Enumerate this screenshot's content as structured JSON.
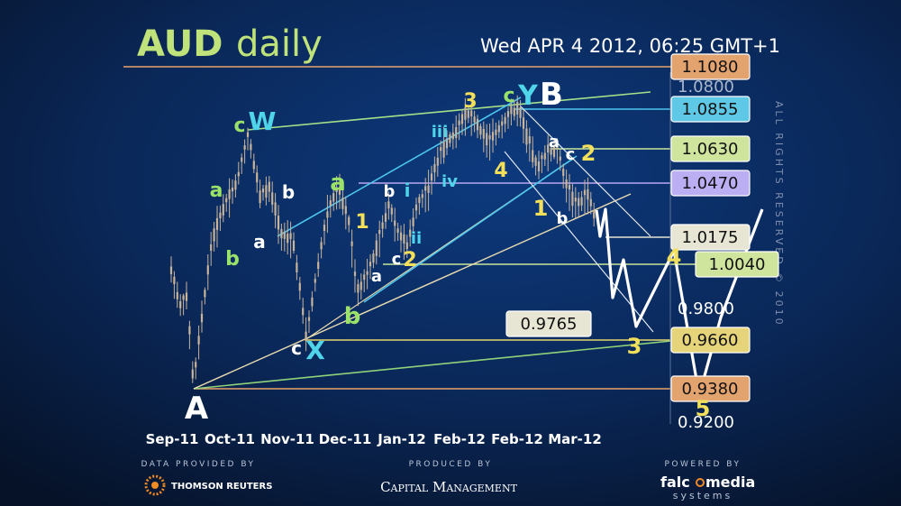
{
  "header": {
    "title_main": "AUD",
    "title_sub": "daily",
    "timestamp": "Wed APR 4 2012, 06:25 GMT+1"
  },
  "watermark": "ALL RIGHTS RESERVED © 2010",
  "footer": {
    "data_caption": "DATA PROVIDED BY",
    "data_provider": "THOMSON REUTERS",
    "produced_caption": "PRODUCED BY",
    "producer": "Capital Management",
    "powered_caption": "POWERED BY",
    "powered_name_1": "falc",
    "powered_name_2": "media",
    "powered_sub": "systems"
  },
  "colors": {
    "background_top": "#0d2f6b",
    "background_bottom": "#071327",
    "candle": "#c8b49a",
    "label_green": "#9be26a",
    "label_yellow": "#f3e05a",
    "label_cyan": "#4fd4ea",
    "label_white": "#ffffff",
    "line_green": "#a6e08a",
    "line_cyan": "#4cc6ee",
    "line_tan": "#e9dcb0",
    "line_violet": "#b9a7f2",
    "line_orange": "#e9a36a",
    "line_yellow": "#e6d66d"
  },
  "chart_data": {
    "type": "candlestick",
    "title": "AUD daily",
    "x_ticks": [
      "Sep-11",
      "Oct-11",
      "Nov-11",
      "Dec-11",
      "Jan-12",
      "Feb-12",
      "Feb-12",
      "Mar-12"
    ],
    "y_ticks": [
      1.08,
      0.98,
      0.92
    ],
    "y_tick_labels": [
      "1.0800",
      "0.9800",
      "0.9200"
    ],
    "ylim": [
      0.9,
      1.1
    ],
    "levels": [
      {
        "label": "1.1080",
        "value": 1.108,
        "color": "#e9a36a"
      },
      {
        "label": "1.0855",
        "value": 1.0855,
        "color": "#4cc6ee"
      },
      {
        "label": "1.0630",
        "value": 1.063,
        "color": "#c9e69a"
      },
      {
        "label": "1.0470",
        "value": 1.047,
        "color": "#b9a7f2"
      },
      {
        "label": "1.0175",
        "value": 1.0175,
        "color": "#e5e3d2"
      },
      {
        "label": "1.0040",
        "value": 1.004,
        "color": "#c9e69a"
      },
      {
        "label": "0.9765",
        "value": 0.9765,
        "color": "#e5e3d2"
      },
      {
        "label": "0.9660",
        "value": 0.966,
        "color": "#e6d66d"
      },
      {
        "label": "0.9380",
        "value": 0.938,
        "color": "#e9a36a"
      }
    ],
    "wave_labels": [
      {
        "text": "A",
        "color": "#ffffff"
      },
      {
        "text": "c",
        "color": "#9be26a"
      },
      {
        "text": "W",
        "color": "#4fd4ea"
      },
      {
        "text": "a",
        "color": "#9be26a"
      },
      {
        "text": "b",
        "color": "#9be26a"
      },
      {
        "text": "b",
        "color": "#ffffff"
      },
      {
        "text": "a",
        "color": "#ffffff"
      },
      {
        "text": "c",
        "color": "#ffffff"
      },
      {
        "text": "X",
        "color": "#4fd4ea"
      },
      {
        "text": "a",
        "color": "#9be26a"
      },
      {
        "text": "b",
        "color": "#9be26a"
      },
      {
        "text": "1",
        "color": "#f3e05a"
      },
      {
        "text": "a",
        "color": "#ffffff"
      },
      {
        "text": "b",
        "color": "#ffffff"
      },
      {
        "text": "c",
        "color": "#ffffff"
      },
      {
        "text": "2",
        "color": "#f3e05a"
      },
      {
        "text": "i",
        "color": "#4fd4ea"
      },
      {
        "text": "ii",
        "color": "#4fd4ea"
      },
      {
        "text": "iii",
        "color": "#4fd4ea"
      },
      {
        "text": "iv",
        "color": "#4fd4ea"
      },
      {
        "text": "3",
        "color": "#f3e05a"
      },
      {
        "text": "c",
        "color": "#9be26a"
      },
      {
        "text": "Y",
        "color": "#4fd4ea"
      },
      {
        "text": "B",
        "color": "#ffffff"
      },
      {
        "text": "4",
        "color": "#f3e05a"
      },
      {
        "text": "a",
        "color": "#ffffff"
      },
      {
        "text": "c",
        "color": "#ffffff"
      },
      {
        "text": "2",
        "color": "#f3e05a"
      },
      {
        "text": "1",
        "color": "#f3e05a"
      },
      {
        "text": "b",
        "color": "#ffffff"
      },
      {
        "text": "4",
        "color": "#f3e05a"
      },
      {
        "text": "3",
        "color": "#f3e05a"
      },
      {
        "text": "5",
        "color": "#f3e05a"
      }
    ]
  }
}
